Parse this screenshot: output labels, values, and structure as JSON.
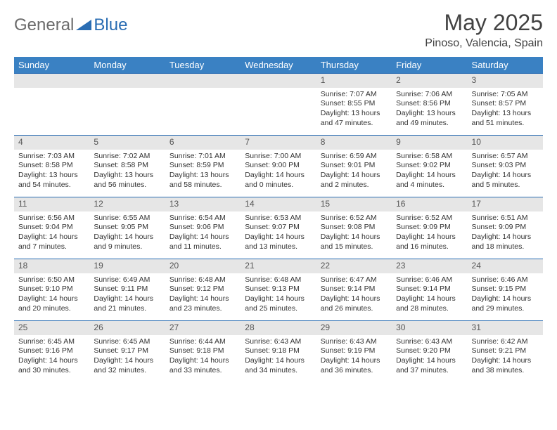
{
  "logo": {
    "general": "General",
    "blue": "Blue"
  },
  "title": "May 2025",
  "location": "Pinoso, Valencia, Spain",
  "columns": [
    "Sunday",
    "Monday",
    "Tuesday",
    "Wednesday",
    "Thursday",
    "Friday",
    "Saturday"
  ],
  "colors": {
    "header_bg": "#3a81c3",
    "header_text": "#ffffff",
    "daynum_bg": "#e6e6e6",
    "row_border": "#2a6db3",
    "logo_gray": "#6b6b6b",
    "logo_blue": "#2a6db3",
    "body_text": "#333333"
  },
  "weeks": [
    [
      null,
      null,
      null,
      null,
      {
        "n": "1",
        "sr": "Sunrise: 7:07 AM",
        "ss": "Sunset: 8:55 PM",
        "d1": "Daylight: 13 hours",
        "d2": "and 47 minutes."
      },
      {
        "n": "2",
        "sr": "Sunrise: 7:06 AM",
        "ss": "Sunset: 8:56 PM",
        "d1": "Daylight: 13 hours",
        "d2": "and 49 minutes."
      },
      {
        "n": "3",
        "sr": "Sunrise: 7:05 AM",
        "ss": "Sunset: 8:57 PM",
        "d1": "Daylight: 13 hours",
        "d2": "and 51 minutes."
      }
    ],
    [
      {
        "n": "4",
        "sr": "Sunrise: 7:03 AM",
        "ss": "Sunset: 8:58 PM",
        "d1": "Daylight: 13 hours",
        "d2": "and 54 minutes."
      },
      {
        "n": "5",
        "sr": "Sunrise: 7:02 AM",
        "ss": "Sunset: 8:58 PM",
        "d1": "Daylight: 13 hours",
        "d2": "and 56 minutes."
      },
      {
        "n": "6",
        "sr": "Sunrise: 7:01 AM",
        "ss": "Sunset: 8:59 PM",
        "d1": "Daylight: 13 hours",
        "d2": "and 58 minutes."
      },
      {
        "n": "7",
        "sr": "Sunrise: 7:00 AM",
        "ss": "Sunset: 9:00 PM",
        "d1": "Daylight: 14 hours",
        "d2": "and 0 minutes."
      },
      {
        "n": "8",
        "sr": "Sunrise: 6:59 AM",
        "ss": "Sunset: 9:01 PM",
        "d1": "Daylight: 14 hours",
        "d2": "and 2 minutes."
      },
      {
        "n": "9",
        "sr": "Sunrise: 6:58 AM",
        "ss": "Sunset: 9:02 PM",
        "d1": "Daylight: 14 hours",
        "d2": "and 4 minutes."
      },
      {
        "n": "10",
        "sr": "Sunrise: 6:57 AM",
        "ss": "Sunset: 9:03 PM",
        "d1": "Daylight: 14 hours",
        "d2": "and 5 minutes."
      }
    ],
    [
      {
        "n": "11",
        "sr": "Sunrise: 6:56 AM",
        "ss": "Sunset: 9:04 PM",
        "d1": "Daylight: 14 hours",
        "d2": "and 7 minutes."
      },
      {
        "n": "12",
        "sr": "Sunrise: 6:55 AM",
        "ss": "Sunset: 9:05 PM",
        "d1": "Daylight: 14 hours",
        "d2": "and 9 minutes."
      },
      {
        "n": "13",
        "sr": "Sunrise: 6:54 AM",
        "ss": "Sunset: 9:06 PM",
        "d1": "Daylight: 14 hours",
        "d2": "and 11 minutes."
      },
      {
        "n": "14",
        "sr": "Sunrise: 6:53 AM",
        "ss": "Sunset: 9:07 PM",
        "d1": "Daylight: 14 hours",
        "d2": "and 13 minutes."
      },
      {
        "n": "15",
        "sr": "Sunrise: 6:52 AM",
        "ss": "Sunset: 9:08 PM",
        "d1": "Daylight: 14 hours",
        "d2": "and 15 minutes."
      },
      {
        "n": "16",
        "sr": "Sunrise: 6:52 AM",
        "ss": "Sunset: 9:09 PM",
        "d1": "Daylight: 14 hours",
        "d2": "and 16 minutes."
      },
      {
        "n": "17",
        "sr": "Sunrise: 6:51 AM",
        "ss": "Sunset: 9:09 PM",
        "d1": "Daylight: 14 hours",
        "d2": "and 18 minutes."
      }
    ],
    [
      {
        "n": "18",
        "sr": "Sunrise: 6:50 AM",
        "ss": "Sunset: 9:10 PM",
        "d1": "Daylight: 14 hours",
        "d2": "and 20 minutes."
      },
      {
        "n": "19",
        "sr": "Sunrise: 6:49 AM",
        "ss": "Sunset: 9:11 PM",
        "d1": "Daylight: 14 hours",
        "d2": "and 21 minutes."
      },
      {
        "n": "20",
        "sr": "Sunrise: 6:48 AM",
        "ss": "Sunset: 9:12 PM",
        "d1": "Daylight: 14 hours",
        "d2": "and 23 minutes."
      },
      {
        "n": "21",
        "sr": "Sunrise: 6:48 AM",
        "ss": "Sunset: 9:13 PM",
        "d1": "Daylight: 14 hours",
        "d2": "and 25 minutes."
      },
      {
        "n": "22",
        "sr": "Sunrise: 6:47 AM",
        "ss": "Sunset: 9:14 PM",
        "d1": "Daylight: 14 hours",
        "d2": "and 26 minutes."
      },
      {
        "n": "23",
        "sr": "Sunrise: 6:46 AM",
        "ss": "Sunset: 9:14 PM",
        "d1": "Daylight: 14 hours",
        "d2": "and 28 minutes."
      },
      {
        "n": "24",
        "sr": "Sunrise: 6:46 AM",
        "ss": "Sunset: 9:15 PM",
        "d1": "Daylight: 14 hours",
        "d2": "and 29 minutes."
      }
    ],
    [
      {
        "n": "25",
        "sr": "Sunrise: 6:45 AM",
        "ss": "Sunset: 9:16 PM",
        "d1": "Daylight: 14 hours",
        "d2": "and 30 minutes."
      },
      {
        "n": "26",
        "sr": "Sunrise: 6:45 AM",
        "ss": "Sunset: 9:17 PM",
        "d1": "Daylight: 14 hours",
        "d2": "and 32 minutes."
      },
      {
        "n": "27",
        "sr": "Sunrise: 6:44 AM",
        "ss": "Sunset: 9:18 PM",
        "d1": "Daylight: 14 hours",
        "d2": "and 33 minutes."
      },
      {
        "n": "28",
        "sr": "Sunrise: 6:43 AM",
        "ss": "Sunset: 9:18 PM",
        "d1": "Daylight: 14 hours",
        "d2": "and 34 minutes."
      },
      {
        "n": "29",
        "sr": "Sunrise: 6:43 AM",
        "ss": "Sunset: 9:19 PM",
        "d1": "Daylight: 14 hours",
        "d2": "and 36 minutes."
      },
      {
        "n": "30",
        "sr": "Sunrise: 6:43 AM",
        "ss": "Sunset: 9:20 PM",
        "d1": "Daylight: 14 hours",
        "d2": "and 37 minutes."
      },
      {
        "n": "31",
        "sr": "Sunrise: 6:42 AM",
        "ss": "Sunset: 9:21 PM",
        "d1": "Daylight: 14 hours",
        "d2": "and 38 minutes."
      }
    ]
  ]
}
